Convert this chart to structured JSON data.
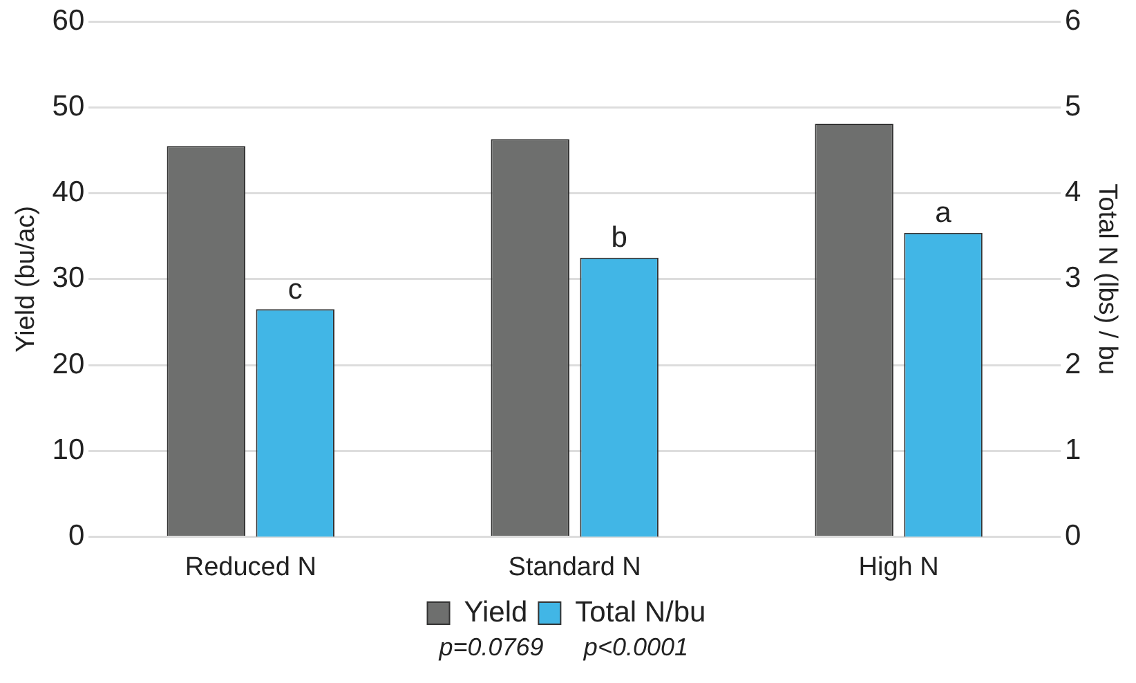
{
  "chart_data": {
    "type": "bar",
    "categories": [
      "Reduced N",
      "Standard N",
      "High N"
    ],
    "series": [
      {
        "name": "Yield",
        "color": "#6e6f6e",
        "values": [
          45.5,
          46.3,
          48.1
        ]
      },
      {
        "name": "Total N/bu",
        "color": "#41b6e6",
        "axis": "y2",
        "values": [
          2.65,
          3.25,
          3.54
        ]
      }
    ],
    "ylabel": "Yield (bu/ac)",
    "y2label": "Total N (lbs) / bu",
    "ylim": [
      0,
      60
    ],
    "yticks": [
      0,
      10,
      20,
      30,
      40,
      50,
      60
    ],
    "y2lim": [
      0,
      6
    ],
    "y2ticks": [
      0,
      1,
      2,
      3,
      4,
      5,
      6
    ],
    "grid": "y",
    "legend": "bottom",
    "annotations": [
      "c",
      "b",
      "a",
      "p=0.0769",
      "p<0.0001"
    ]
  }
}
